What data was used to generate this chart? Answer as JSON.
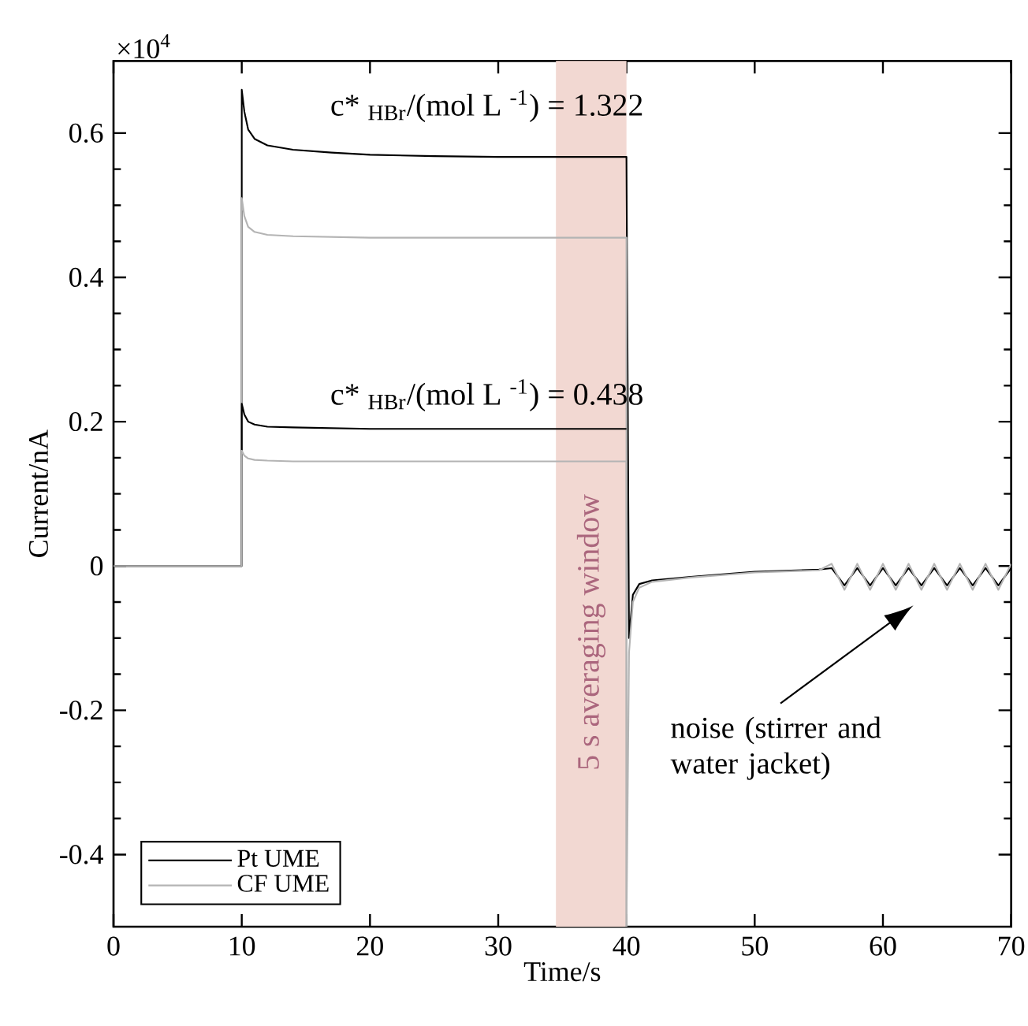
{
  "chart_data": {
    "type": "line",
    "xlabel": "Time/s",
    "ylabel": "Current/nA",
    "xlim": [
      0,
      70
    ],
    "ylim": [
      -0.5,
      0.7
    ],
    "xticks": [
      0,
      10,
      20,
      30,
      40,
      50,
      60,
      70
    ],
    "yticks": [
      -0.4,
      -0.2,
      0,
      0.2,
      0.4,
      0.6
    ],
    "grid": false,
    "legend": "bottom left",
    "line_style": "solid",
    "marker": "none",
    "series": [
      {
        "name": "Pt UME",
        "color": "#000000",
        "x": [
          0,
          10,
          10,
          10.2,
          10.5,
          11,
          12,
          14,
          17,
          20,
          25,
          30,
          35,
          40,
          40.2,
          40.5,
          41,
          42,
          45,
          50,
          55,
          56,
          57,
          58,
          59,
          60,
          61,
          62,
          63,
          64,
          65,
          66,
          67,
          68,
          69,
          70
        ],
        "values": [
          0,
          0,
          0.66,
          0.63,
          0.605,
          0.592,
          0.583,
          0.577,
          0.573,
          0.57,
          0.568,
          0.567,
          0.567,
          0.567,
          -0.1,
          -0.04,
          -0.025,
          -0.02,
          -0.015,
          -0.008,
          -0.005,
          -0.003,
          -0.027,
          -0.003,
          -0.027,
          -0.003,
          -0.027,
          -0.003,
          -0.027,
          -0.003,
          -0.027,
          -0.003,
          -0.027,
          -0.003,
          -0.027,
          -0.003
        ]
      },
      {
        "name": "CF UME",
        "color": "#b4b4b4",
        "x": [
          0,
          10,
          10,
          10.2,
          10.5,
          11,
          12,
          14,
          17,
          20,
          25,
          30,
          35,
          40,
          40,
          40.2,
          40.5,
          41,
          42,
          45,
          50,
          55,
          56,
          57,
          58,
          59,
          60,
          61,
          62,
          63,
          64,
          65,
          66,
          67,
          68,
          69,
          70
        ],
        "values": [
          0,
          0,
          0.51,
          0.485,
          0.47,
          0.463,
          0.459,
          0.457,
          0.456,
          0.455,
          0.455,
          0.455,
          0.455,
          0.455,
          -0.5,
          -0.12,
          -0.05,
          -0.03,
          -0.022,
          -0.016,
          -0.009,
          -0.006,
          0.003,
          -0.033,
          0.003,
          -0.033,
          0.003,
          -0.033,
          0.003,
          -0.033,
          0.003,
          -0.033,
          0.003,
          -0.033,
          0.003,
          -0.033,
          0.003
        ]
      },
      {
        "color": "#000000",
        "x": [
          0,
          10,
          10,
          10.2,
          10.5,
          11,
          12,
          14,
          17,
          20,
          25,
          30,
          35,
          40
        ],
        "values": [
          0,
          0,
          0.225,
          0.21,
          0.2,
          0.196,
          0.193,
          0.192,
          0.191,
          0.19,
          0.19,
          0.19,
          0.19,
          0.19
        ]
      },
      {
        "color": "#b4b4b4",
        "x": [
          0,
          10,
          10,
          10.2,
          10.5,
          11,
          12,
          14,
          17,
          20,
          25,
          30,
          35,
          40,
          40
        ],
        "values": [
          0,
          0,
          0.16,
          0.153,
          0.149,
          0.147,
          0.146,
          0.145,
          0.145,
          0.145,
          0.145,
          0.145,
          0.145,
          0.145,
          -0.5
        ]
      }
    ],
    "bands": [
      {
        "axis": "x",
        "from": 34.5,
        "to": 40,
        "label": "5 s averaging window",
        "color": "#f2d8d2"
      }
    ],
    "annotations": [
      "×10$^{4}$",
      "c* $_{HBr}$/(mol L $^{-1}$) = 1.322",
      "c* $_{HBr}$/(mol L $^{-1}$) = 0.438",
      "noise (stirrer and water jacket)"
    ]
  }
}
